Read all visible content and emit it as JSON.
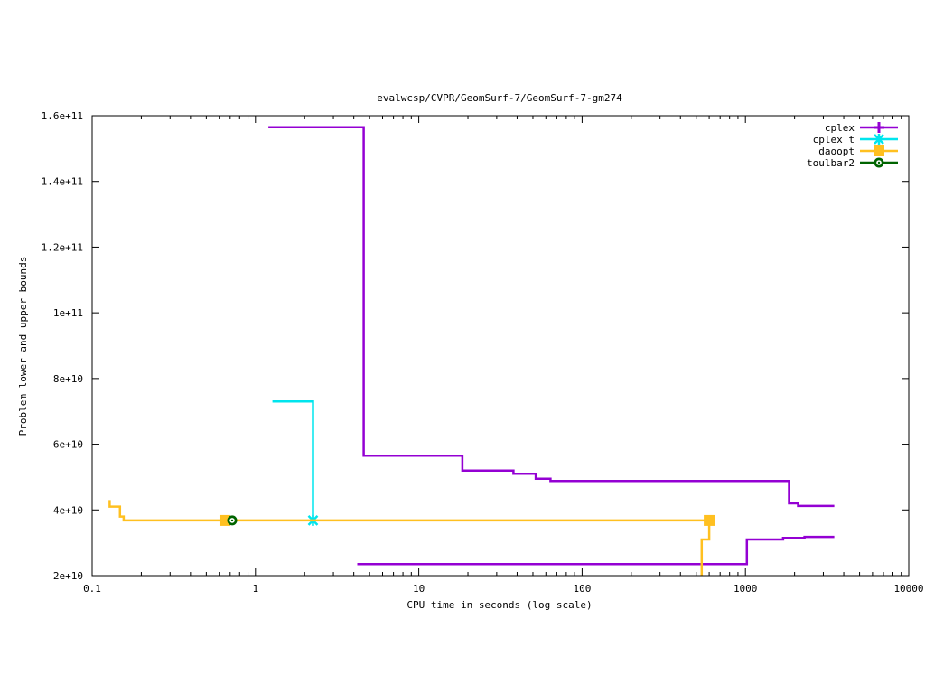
{
  "chart_data": {
    "type": "line",
    "title": "evalwcsp/CVPR/GeomSurf-7/GeomSurf-7-gm274",
    "xlabel": "CPU time in seconds (log scale)",
    "ylabel": "Problem lower and upper bounds",
    "xscale": "log",
    "xlim": [
      0.1,
      10000
    ],
    "ylim": [
      20000000000,
      160000000000
    ],
    "grid": false,
    "legend_position": "top-right",
    "xticks": [
      {
        "value": 0.1,
        "label": "0.1"
      },
      {
        "value": 1,
        "label": "1"
      },
      {
        "value": 10,
        "label": "10"
      },
      {
        "value": 100,
        "label": "100"
      },
      {
        "value": 1000,
        "label": "1000"
      },
      {
        "value": 10000,
        "label": "10000"
      }
    ],
    "yticks": [
      {
        "value": 20000000000,
        "label": "2e+10"
      },
      {
        "value": 40000000000,
        "label": "4e+10"
      },
      {
        "value": 60000000000,
        "label": "6e+10"
      },
      {
        "value": 80000000000,
        "label": "8e+10"
      },
      {
        "value": 100000000000,
        "label": "1e+11"
      },
      {
        "value": 120000000000,
        "label": "1.2e+11"
      },
      {
        "value": 140000000000,
        "label": "1.4e+11"
      },
      {
        "value": 160000000000,
        "label": "1.6e+11"
      }
    ],
    "series": [
      {
        "name": "cplex",
        "color": "#9400d3",
        "marker": "plus",
        "lines": [
          {
            "role": "upper",
            "points": [
              [
                1.2,
                156500000000
              ],
              [
                4.6,
                156500000000
              ],
              [
                4.6,
                56500000000
              ],
              [
                18.5,
                56500000000
              ],
              [
                18.5,
                52000000000
              ],
              [
                38,
                52000000000
              ],
              [
                38,
                51000000000
              ],
              [
                52,
                51000000000
              ],
              [
                52,
                49500000000
              ],
              [
                64,
                49500000000
              ],
              [
                64,
                48800000000
              ],
              [
                1850,
                48800000000
              ],
              [
                1850,
                42000000000
              ],
              [
                2100,
                42000000000
              ],
              [
                2100,
                41200000000
              ],
              [
                3500,
                41200000000
              ]
            ]
          },
          {
            "role": "lower",
            "points": [
              [
                4.2,
                23500000000
              ],
              [
                1020,
                23500000000
              ],
              [
                1020,
                31000000000
              ],
              [
                1700,
                31000000000
              ],
              [
                1700,
                31500000000
              ],
              [
                2300,
                31500000000
              ],
              [
                2300,
                31800000000
              ],
              [
                3500,
                31800000000
              ]
            ]
          }
        ],
        "markers": []
      },
      {
        "name": "cplex_t",
        "color": "#00e5ee",
        "marker": "star",
        "lines": [
          {
            "role": "upper",
            "points": [
              [
                1.27,
                73000000000
              ],
              [
                2.25,
                73000000000
              ],
              [
                2.25,
                36800000000
              ]
            ]
          }
        ],
        "markers": [
          [
            2.25,
            36800000000
          ]
        ]
      },
      {
        "name": "daoopt",
        "color": "#ffc020",
        "marker": "square",
        "lines": [
          {
            "role": "upper",
            "points": [
              [
                0.128,
                43000000000
              ],
              [
                0.128,
                41000000000
              ],
              [
                0.148,
                41000000000
              ],
              [
                0.148,
                38000000000
              ],
              [
                0.156,
                38000000000
              ],
              [
                0.156,
                36800000000
              ],
              [
                600,
                36800000000
              ]
            ]
          },
          {
            "role": "lower",
            "points": [
              [
                540,
                20000000000
              ],
              [
                540,
                31000000000
              ],
              [
                600,
                31000000000
              ],
              [
                600,
                36800000000
              ]
            ]
          }
        ],
        "markers": [
          [
            0.65,
            36800000000
          ],
          [
            600,
            36800000000
          ]
        ]
      },
      {
        "name": "toulbar2",
        "color": "#006400",
        "marker": "circle",
        "lines": [],
        "markers": [
          [
            0.72,
            36800000000
          ]
        ]
      }
    ]
  }
}
